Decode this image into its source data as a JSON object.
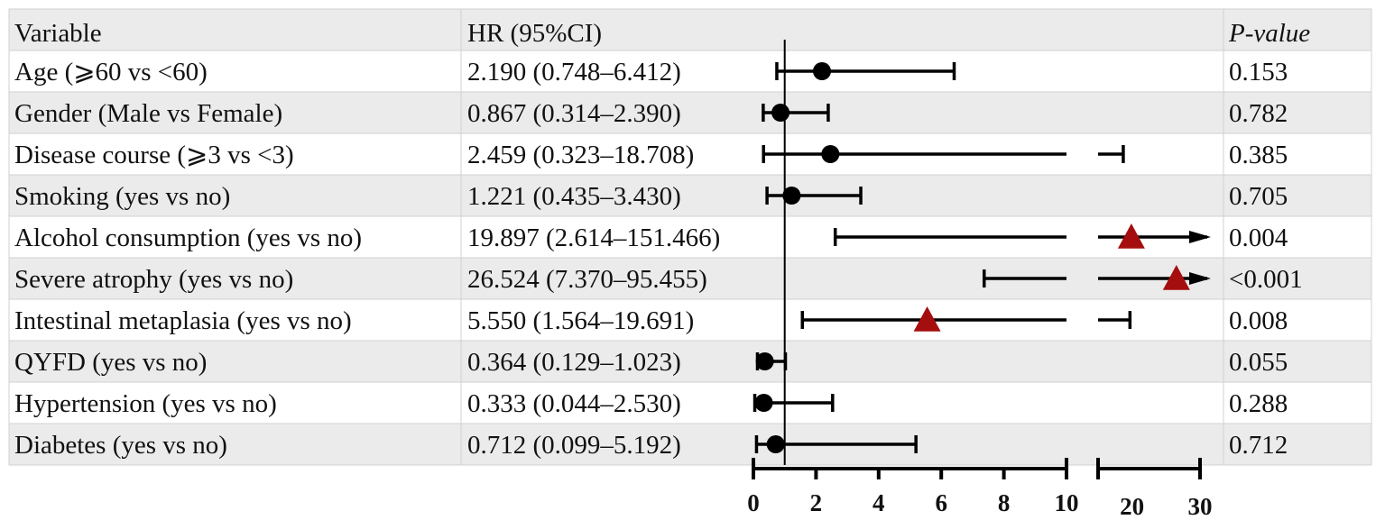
{
  "chart_data": {
    "type": "forest",
    "headers": {
      "variable": "Variable",
      "hr": "HR (95%CI)",
      "p": "P-value"
    },
    "rows": [
      {
        "variable": "Age (⩾60 vs <60)",
        "hr_text": "2.190 (0.748–6.412)",
        "hr": 2.19,
        "lo": 0.748,
        "hi": 6.412,
        "p": "0.153",
        "significant": false,
        "arrow": false
      },
      {
        "variable": "Gender (Male vs Female)",
        "hr_text": "0.867 (0.314–2.390)",
        "hr": 0.867,
        "lo": 0.314,
        "hi": 2.39,
        "p": "0.782",
        "significant": false,
        "arrow": false
      },
      {
        "variable": "Disease course (⩾3 vs <3)",
        "hr_text": "2.459 (0.323–18.708)",
        "hr": 2.459,
        "lo": 0.323,
        "hi": 18.708,
        "p": "0.385",
        "significant": false,
        "arrow": false
      },
      {
        "variable": "Smoking (yes vs no)",
        "hr_text": "1.221 (0.435–3.430)",
        "hr": 1.221,
        "lo": 0.435,
        "hi": 3.43,
        "p": "0.705",
        "significant": false,
        "arrow": false
      },
      {
        "variable": "Alcohol consumption (yes vs no)",
        "hr_text": "19.897 (2.614–151.466)",
        "hr": 19.897,
        "lo": 2.614,
        "hi": 151.466,
        "p": "0.004",
        "significant": true,
        "arrow": true
      },
      {
        "variable": "Severe atrophy (yes vs no)",
        "hr_text": "26.524 (7.370–95.455)",
        "hr": 26.524,
        "lo": 7.37,
        "hi": 95.455,
        "p": "<0.001",
        "significant": true,
        "arrow": true
      },
      {
        "variable": "Intestinal metaplasia (yes vs no)",
        "hr_text": "5.550 (1.564–19.691)",
        "hr": 5.55,
        "lo": 1.564,
        "hi": 19.691,
        "p": "0.008",
        "significant": true,
        "arrow": false
      },
      {
        "variable": "QYFD (yes vs no)",
        "hr_text": "0.364 (0.129–1.023)",
        "hr": 0.364,
        "lo": 0.129,
        "hi": 1.023,
        "p": "0.055",
        "significant": false,
        "arrow": false
      },
      {
        "variable": "Hypertension (yes vs no)",
        "hr_text": "0.333 (0.044–2.530)",
        "hr": 0.333,
        "lo": 0.044,
        "hi": 2.53,
        "p": "0.288",
        "significant": false,
        "arrow": false
      },
      {
        "variable": "Diabetes (yes vs no)",
        "hr_text": "0.712 (0.099–5.192)",
        "hr": 0.712,
        "lo": 0.099,
        "hi": 5.192,
        "p": "0.712",
        "significant": false,
        "arrow": false
      }
    ],
    "reference_line": 1,
    "x_axis": {
      "segments": [
        {
          "range": [
            0,
            10
          ]
        },
        {
          "range": [
            15,
            30
          ]
        }
      ],
      "ticks_left": [
        "0",
        "2",
        "4",
        "6",
        "8",
        "10"
      ],
      "ticks_right": [
        "20",
        "30"
      ],
      "broken": true
    },
    "grid": false,
    "legend": "none",
    "colors": {
      "nonsignificant": "#000000",
      "significant": "#a50e0e",
      "row_shade": "#ebebeb"
    }
  }
}
